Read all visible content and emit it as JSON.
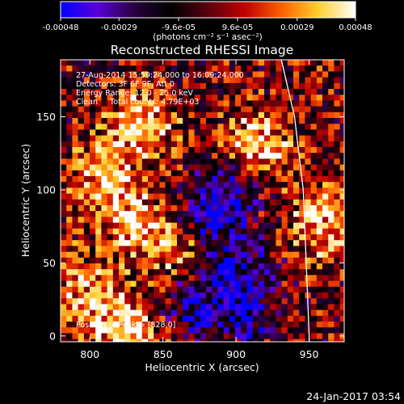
{
  "chart_data": {
    "type": "heatmap",
    "title": "Reconstructed RHESSI Image",
    "xlabel": "Heliocentric X (arcsec)",
    "ylabel": "Heliocentric Y (arcsec)",
    "xlim": [
      780,
      974
    ],
    "ylim": [
      -4,
      189
    ],
    "x_ticks": [
      800,
      850,
      900,
      950
    ],
    "y_ticks": [
      0,
      50,
      100,
      150
    ],
    "grid": false,
    "colorbar": {
      "position": "top",
      "range": [
        -0.00048,
        0.00048
      ],
      "tick_values": [
        -0.00048,
        -0.00029,
        -9.6e-05,
        9.6e-05,
        0.00029,
        0.00048
      ],
      "tick_labels": [
        "-0.00048",
        "-0.00029",
        "-9.6e-05",
        "9.6e-05",
        "0.00029",
        "0.00048"
      ],
      "unit_label": "(photons cm⁻² s⁻¹ asec⁻²)",
      "colors": [
        "#0000ff",
        "#5a00d8",
        "#2a0040",
        "#000000",
        "#5a0010",
        "#c00000",
        "#ff6000",
        "#ffd030",
        "#ffffff"
      ]
    },
    "annotations": [
      "27-Aug-2014 15:59:24.000 to 16:09:24.000",
      "Detectors: 3F 6F 9F, Att 0",
      "Energy Range: 12.0 - 25.0 keV",
      "Clean     Total counts: 4.79E+03"
    ],
    "peak_label": "Position of Peak = [828,0]",
    "peak_position": [
      828,
      0
    ],
    "limb_curve": [
      [
        931,
        189
      ],
      [
        940,
        150
      ],
      [
        946,
        100
      ],
      [
        948,
        50
      ],
      [
        950,
        0
      ],
      [
        950,
        -4
      ]
    ],
    "bright_sources": [
      {
        "x": 825,
        "y": 5,
        "intensity": 1.0
      },
      {
        "x": 835,
        "y": 145,
        "intensity": 0.85
      },
      {
        "x": 830,
        "y": 75,
        "intensity": 0.8
      },
      {
        "x": 915,
        "y": 130,
        "intensity": 0.9
      },
      {
        "x": 960,
        "y": 75,
        "intensity": 0.8
      },
      {
        "x": 810,
        "y": 110,
        "intensity": 0.7
      },
      {
        "x": 795,
        "y": 30,
        "intensity": 0.65
      },
      {
        "x": 865,
        "y": 60,
        "intensity": 0.6
      }
    ],
    "dim_regions": [
      {
        "x": 880,
        "y": 80,
        "intensity": -0.7
      },
      {
        "x": 900,
        "y": 45,
        "intensity": -0.75
      },
      {
        "x": 870,
        "y": 20,
        "intensity": -0.6
      },
      {
        "x": 905,
        "y": 15,
        "intensity": -0.55
      },
      {
        "x": 895,
        "y": 100,
        "intensity": -0.6
      }
    ]
  },
  "footer": {
    "timestamp": "24-Jan-2017 03:54"
  }
}
